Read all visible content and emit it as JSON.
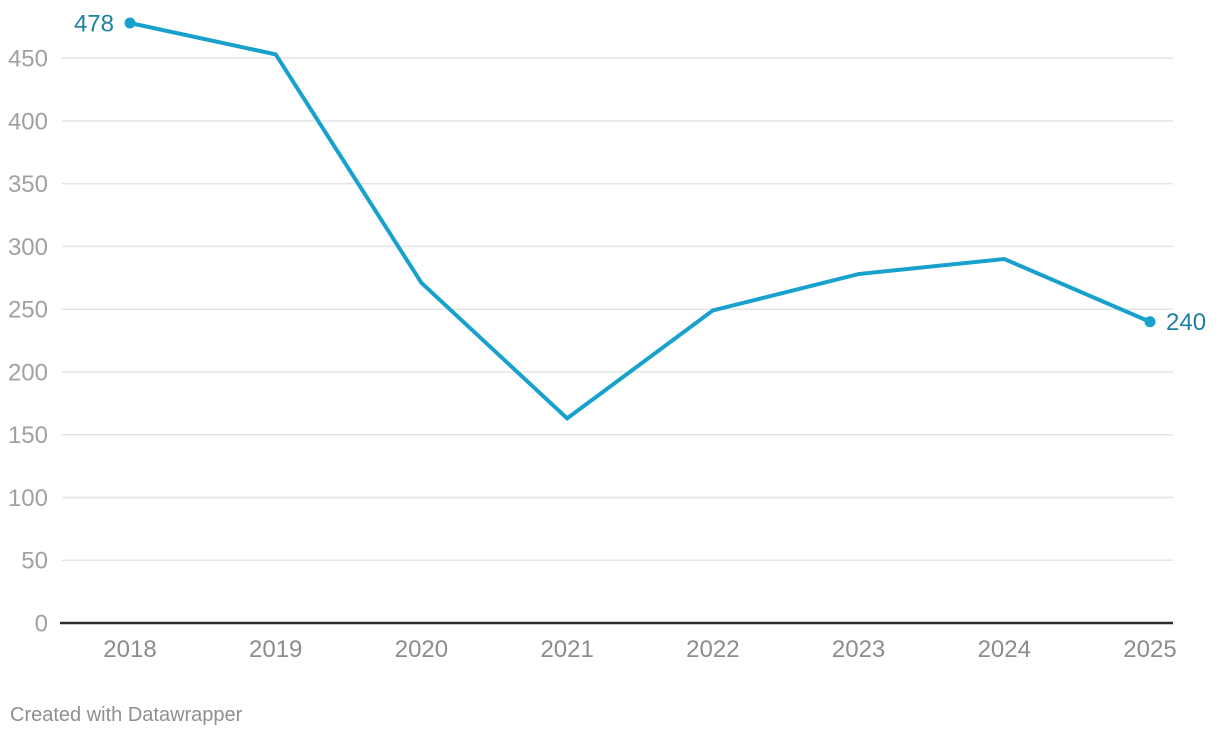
{
  "chart_data": {
    "type": "line",
    "x_labels": [
      "2018",
      "2019",
      "2020",
      "2021",
      "2022",
      "2023",
      "2024",
      "2025"
    ],
    "values": [
      478,
      453,
      271,
      163,
      249,
      278,
      290,
      240
    ],
    "y_ticks": [
      0,
      50,
      100,
      150,
      200,
      250,
      300,
      350,
      400,
      450
    ],
    "ylim": [
      0,
      478
    ],
    "xlabel": "",
    "ylabel": "",
    "title": "",
    "grid": true,
    "legend": "none",
    "first_point_label": "478",
    "last_point_label": "240",
    "colors": {
      "line": "#18a1cd",
      "point": "#18a1cd",
      "value_label": "#1d81a2",
      "y_tick_label": "#a1a1a1",
      "x_tick_label": "#8c8c8c",
      "gridline": "#e4e4e4",
      "axis_line": "#2e2e2e",
      "background": "#ffffff"
    }
  },
  "footer": {
    "credit": "Created with Datawrapper"
  }
}
